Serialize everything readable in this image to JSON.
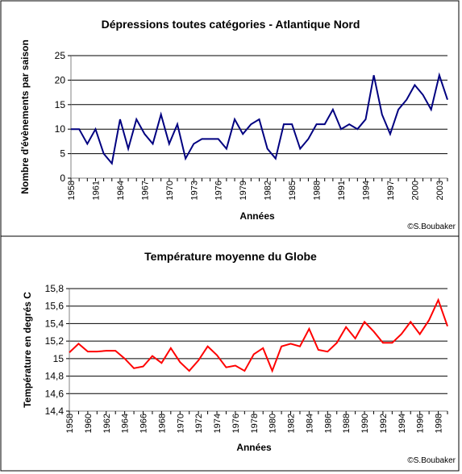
{
  "chart_data": [
    {
      "type": "line",
      "title": "Dépressions toutes catégories - Atlantique Nord",
      "title_color": "#000080",
      "line_color": "#000080",
      "xlabel": "Années",
      "ylabel": "Nombre d'évènements par saison",
      "ylim": [
        0,
        25
      ],
      "yticks": [
        "0",
        "5",
        "10",
        "15",
        "20",
        "25"
      ],
      "xtick_labels": [
        "1958",
        "1961",
        "1964",
        "1967",
        "1970",
        "1973",
        "1976",
        "1979",
        "1982",
        "1985",
        "1988",
        "1991",
        "1994",
        "1997",
        "2000",
        "2003"
      ],
      "grid": "horizontal",
      "credit": "©S.Boubaker",
      "x": [
        1958,
        1959,
        1960,
        1961,
        1962,
        1963,
        1964,
        1965,
        1966,
        1967,
        1968,
        1969,
        1970,
        1971,
        1972,
        1973,
        1974,
        1975,
        1976,
        1977,
        1978,
        1979,
        1980,
        1981,
        1982,
        1983,
        1984,
        1985,
        1986,
        1987,
        1988,
        1989,
        1990,
        1991,
        1992,
        1993,
        1994,
        1995,
        1996,
        1997,
        1998,
        1999,
        2000,
        2001,
        2002,
        2003,
        2004
      ],
      "values": [
        10,
        10,
        7,
        10,
        5,
        3,
        12,
        6,
        12,
        9,
        7,
        13,
        7,
        11,
        4,
        7,
        8,
        8,
        8,
        6,
        12,
        9,
        11,
        12,
        6,
        4,
        11,
        11,
        6,
        8,
        11,
        11,
        14,
        10,
        11,
        10,
        12,
        21,
        13,
        9,
        14,
        16,
        19,
        17,
        14,
        21,
        16
      ]
    },
    {
      "type": "line",
      "title": "Température  moyenne du Globe",
      "title_color": "#ff0000",
      "line_color": "#ff0000",
      "xlabel": "Années",
      "ylabel": "Température en degrés C",
      "ylim": [
        14.4,
        15.8
      ],
      "yticks": [
        "14,4",
        "14,6",
        "14,8",
        "15",
        "15,2",
        "15,4",
        "15,6",
        "15,8"
      ],
      "xtick_labels": [
        "1958",
        "1960",
        "1962",
        "1964",
        "1966",
        "1968",
        "1970",
        "1972",
        "1974",
        "1976",
        "1978",
        "1980",
        "1982",
        "1984",
        "1986",
        "1988",
        "1990",
        "1992",
        "1994",
        "1996",
        "1998"
      ],
      "grid": "horizontal",
      "credit": "©S.Boubaker",
      "x": [
        1958,
        1959,
        1960,
        1961,
        1962,
        1963,
        1964,
        1965,
        1966,
        1967,
        1968,
        1969,
        1970,
        1971,
        1972,
        1973,
        1974,
        1975,
        1976,
        1977,
        1978,
        1979,
        1980,
        1981,
        1982,
        1983,
        1984,
        1985,
        1986,
        1987,
        1988,
        1989,
        1990,
        1991,
        1992,
        1993,
        1994,
        1995,
        1996,
        1997,
        1998,
        1999
      ],
      "values": [
        15.07,
        15.17,
        15.08,
        15.08,
        15.09,
        15.09,
        15.0,
        14.89,
        14.91,
        15.03,
        14.95,
        15.12,
        14.96,
        14.86,
        14.98,
        15.14,
        15.04,
        14.9,
        14.92,
        14.86,
        15.05,
        15.12,
        14.86,
        15.14,
        15.17,
        15.14,
        15.34,
        15.1,
        15.08,
        15.18,
        15.36,
        15.23,
        15.42,
        15.31,
        15.18,
        15.18,
        15.28,
        15.42,
        15.28,
        15.44,
        15.67,
        15.37
      ]
    }
  ]
}
